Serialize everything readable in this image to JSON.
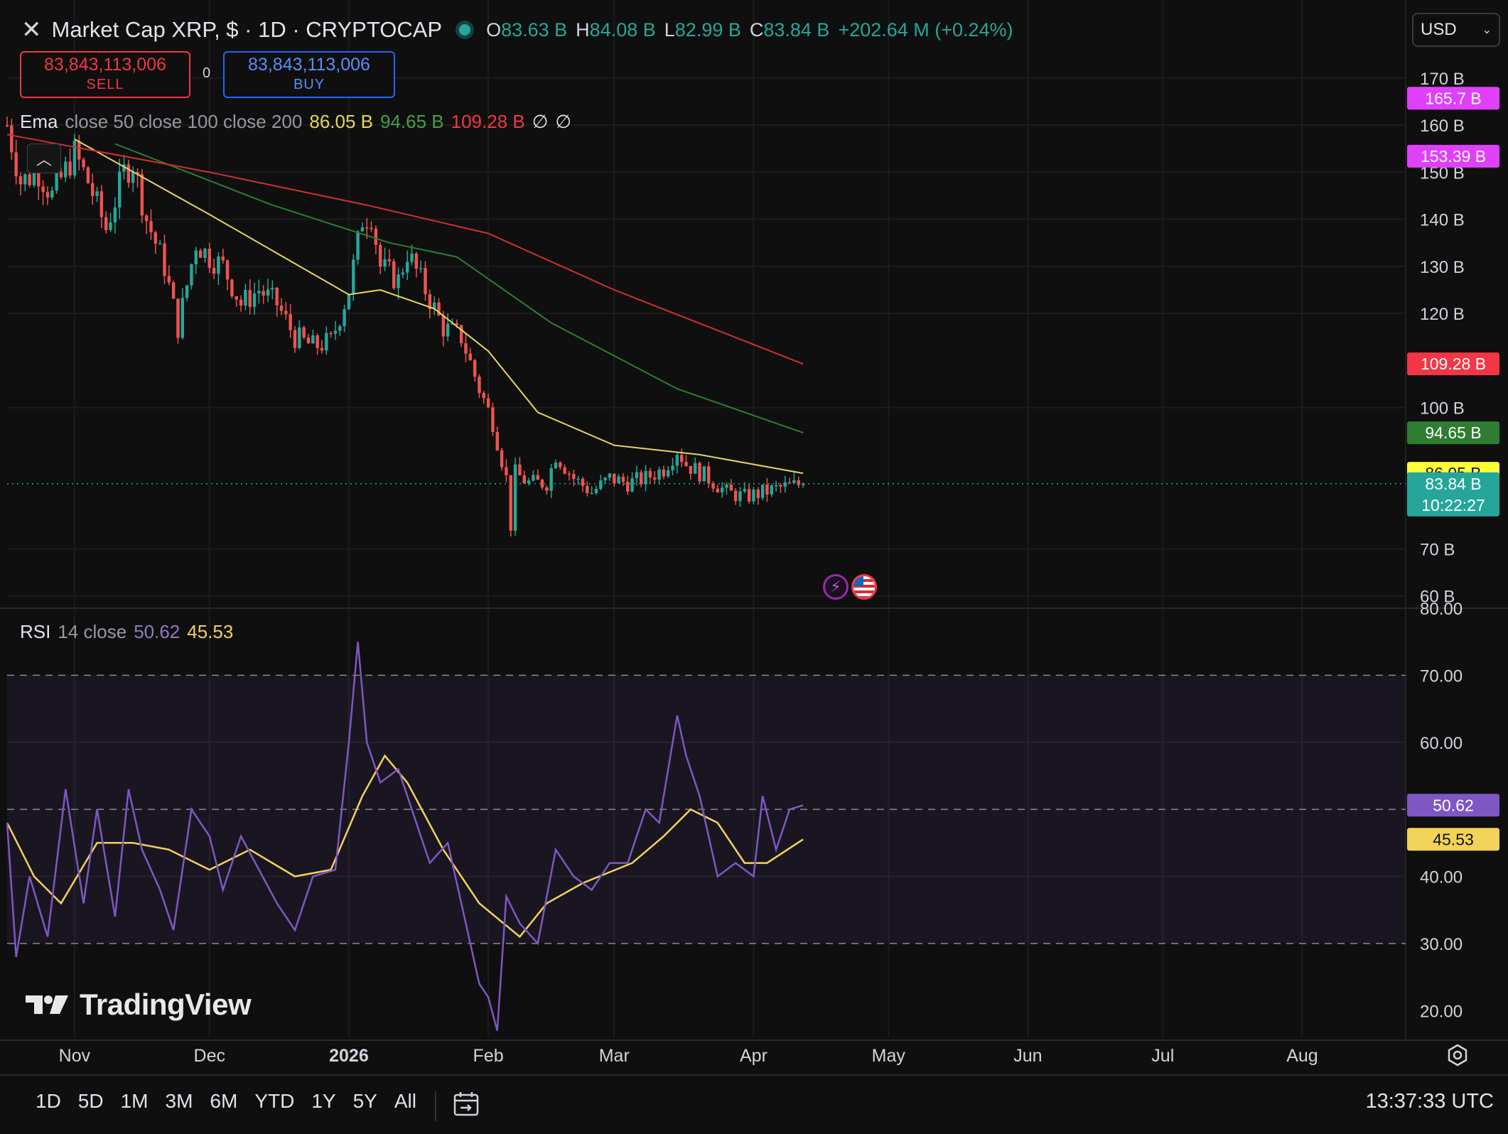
{
  "header": {
    "title": "Market Cap XRP, $ · 1D · CRYPTOCAP",
    "o_label": "O",
    "o": "83.63 B",
    "h_label": "H",
    "h": "84.08 B",
    "l_label": "L",
    "l": "82.99 B",
    "c_label": "C",
    "c": "83.84 B",
    "change": "+202.64 M (+0.24%)"
  },
  "currency": {
    "value": "USD"
  },
  "trade": {
    "sell_price": "83,843,113,006",
    "sell_label": "SELL",
    "spread": "0",
    "buy_price": "83,843,113,006",
    "buy_label": "BUY"
  },
  "ema_legend": {
    "name": "Ema",
    "params": "close 50 close 100 close 200",
    "v50": "86.05 B",
    "v100": "94.65 B",
    "v200": "109.28 B",
    "extra1": "∅",
    "extra2": "∅"
  },
  "rsi_legend": {
    "name": "RSI",
    "params": "14 close",
    "rsi": "50.62",
    "ma": "45.53"
  },
  "colors": {
    "up": "#26a69a",
    "down": "#ef5350",
    "ema50": "#e6d65c",
    "ema100": "#2e7d32",
    "ema200": "#d32f2f",
    "rsi": "#7e57c2",
    "rsi_ma": "#f2d35a"
  },
  "chart_data": [
    {
      "type": "candlestick",
      "series_name": "Market Cap XRP",
      "y_unit": "B",
      "ylim": [
        58,
        176
      ],
      "x_range": [
        "2025-10-17",
        "2026-08-24"
      ],
      "x_tick_labels": [
        "Nov",
        "Dec",
        "2026",
        "Feb",
        "Mar",
        "Apr",
        "May",
        "Jun",
        "Jul",
        "Aug"
      ],
      "x_tick_dates": [
        "2025-11-01",
        "2025-12-01",
        "2026-01-01",
        "2026-02-01",
        "2026-03-01",
        "2026-04-01",
        "2026-05-01",
        "2026-06-01",
        "2026-07-01",
        "2026-08-01"
      ],
      "y_ticks": [
        "170 B",
        "160 B",
        "150 B",
        "140 B",
        "130 B",
        "120 B",
        "100 B",
        "70 B",
        "60 B"
      ],
      "y_tick_values": [
        170,
        160,
        150,
        140,
        130,
        120,
        100,
        70,
        60
      ],
      "close_anchors": [
        [
          "2025-10-17",
          160
        ],
        [
          "2025-10-20",
          148
        ],
        [
          "2025-10-24",
          150
        ],
        [
          "2025-10-27",
          145
        ],
        [
          "2025-11-01",
          154
        ],
        [
          "2025-11-04",
          148
        ],
        [
          "2025-11-08",
          138
        ],
        [
          "2025-11-12",
          150
        ],
        [
          "2025-11-14",
          152
        ],
        [
          "2025-11-17",
          140
        ],
        [
          "2025-11-21",
          130
        ],
        [
          "2025-11-24",
          117
        ],
        [
          "2025-11-28",
          135
        ],
        [
          "2025-12-01",
          132
        ],
        [
          "2025-12-04",
          130
        ],
        [
          "2025-12-08",
          122
        ],
        [
          "2025-12-12",
          125
        ],
        [
          "2025-12-16",
          122
        ],
        [
          "2025-12-20",
          115
        ],
        [
          "2025-12-24",
          113
        ],
        [
          "2025-12-28",
          114
        ],
        [
          "2026-01-01",
          125
        ],
        [
          "2026-01-04",
          140
        ],
        [
          "2026-01-06",
          141
        ],
        [
          "2026-01-08",
          130
        ],
        [
          "2026-01-12",
          127
        ],
        [
          "2026-01-14",
          133
        ],
        [
          "2026-01-18",
          125
        ],
        [
          "2026-01-22",
          117
        ],
        [
          "2026-01-26",
          115
        ],
        [
          "2026-01-30",
          104
        ],
        [
          "2026-02-02",
          97
        ],
        [
          "2026-02-05",
          85
        ],
        [
          "2026-02-06",
          75
        ],
        [
          "2026-02-07",
          86
        ],
        [
          "2026-02-10",
          84
        ],
        [
          "2026-02-14",
          84
        ],
        [
          "2026-02-16",
          90
        ],
        [
          "2026-02-20",
          85
        ],
        [
          "2026-02-24",
          82
        ],
        [
          "2026-02-28",
          85
        ],
        [
          "2026-03-04",
          84
        ],
        [
          "2026-03-08",
          85
        ],
        [
          "2026-03-12",
          87
        ],
        [
          "2026-03-15",
          91
        ],
        [
          "2026-03-17",
          88
        ],
        [
          "2026-03-22",
          85
        ],
        [
          "2026-03-26",
          82
        ],
        [
          "2026-03-30",
          81
        ],
        [
          "2026-04-03",
          82
        ],
        [
          "2026-04-07",
          83
        ],
        [
          "2026-04-12",
          83.84
        ]
      ],
      "ema_series": [
        {
          "name": "Ema 50",
          "last": 86.05,
          "points": [
            [
              "2025-11-01",
              157
            ],
            [
              "2025-12-01",
              141
            ],
            [
              "2026-01-01",
              124
            ],
            [
              "2026-01-08",
              125
            ],
            [
              "2026-01-20",
              121
            ],
            [
              "2026-02-01",
              112
            ],
            [
              "2026-02-12",
              99
            ],
            [
              "2026-03-01",
              92
            ],
            [
              "2026-03-20",
              90
            ],
            [
              "2026-04-12",
              86.05
            ]
          ]
        },
        {
          "name": "Ema 100",
          "last": 94.65,
          "points": [
            [
              "2025-11-10",
              156
            ],
            [
              "2025-12-15",
              143
            ],
            [
              "2026-01-10",
              135
            ],
            [
              "2026-01-25",
              132
            ],
            [
              "2026-02-15",
              118
            ],
            [
              "2026-03-15",
              104
            ],
            [
              "2026-04-12",
              94.65
            ]
          ]
        },
        {
          "name": "Ema 200",
          "last": 109.28,
          "points": [
            [
              "2025-10-17",
              158
            ],
            [
              "2025-12-01",
              150
            ],
            [
              "2026-01-05",
              143
            ],
            [
              "2026-02-01",
              137
            ],
            [
              "2026-03-01",
              125
            ],
            [
              "2026-04-12",
              109.28
            ]
          ]
        }
      ],
      "price_badges": [
        {
          "text": "165.7 B",
          "value": 165.7,
          "color": "#e040fb"
        },
        {
          "text": "153.39 B",
          "value": 153.39,
          "color": "#e040fb"
        },
        {
          "text": "109.28 B",
          "value": 109.28,
          "color": "#f23645"
        },
        {
          "text": "94.65 B",
          "value": 94.65,
          "color": "#2e7d32"
        },
        {
          "text": "86.05 B",
          "value": 86.05,
          "color": "#ffff3b"
        },
        {
          "text": "83.84 B",
          "value": 83.84,
          "color": "#26a69a",
          "sub": "10:22:27"
        }
      ]
    },
    {
      "type": "line",
      "series_name": "RSI",
      "ylim": [
        16,
        80
      ],
      "y_ticks": [
        "80.00",
        "70.00",
        "60.00",
        "40.00",
        "30.00",
        "20.00"
      ],
      "y_tick_values": [
        80,
        70,
        60,
        40,
        30,
        20
      ],
      "band": [
        30,
        70
      ],
      "midline": 50,
      "rsi_anchors": [
        [
          "2025-10-17",
          48
        ],
        [
          "2025-10-19",
          28
        ],
        [
          "2025-10-22",
          40
        ],
        [
          "2025-10-26",
          31
        ],
        [
          "2025-10-30",
          53
        ],
        [
          "2025-11-03",
          36
        ],
        [
          "2025-11-06",
          50
        ],
        [
          "2025-11-10",
          34
        ],
        [
          "2025-11-13",
          53
        ],
        [
          "2025-11-16",
          44
        ],
        [
          "2025-11-20",
          38
        ],
        [
          "2025-11-23",
          32
        ],
        [
          "2025-11-27",
          50
        ],
        [
          "2025-12-01",
          46
        ],
        [
          "2025-12-04",
          38
        ],
        [
          "2025-12-08",
          46
        ],
        [
          "2025-12-12",
          41
        ],
        [
          "2025-12-16",
          36
        ],
        [
          "2025-12-20",
          32
        ],
        [
          "2025-12-24",
          40
        ],
        [
          "2025-12-29",
          41
        ],
        [
          "2026-01-01",
          60
        ],
        [
          "2026-01-03",
          75
        ],
        [
          "2026-01-05",
          60
        ],
        [
          "2026-01-08",
          54
        ],
        [
          "2026-01-12",
          56
        ],
        [
          "2026-01-15",
          50
        ],
        [
          "2026-01-19",
          42
        ],
        [
          "2026-01-23",
          45
        ],
        [
          "2026-01-27",
          33
        ],
        [
          "2026-01-30",
          24
        ],
        [
          "2026-02-01",
          22
        ],
        [
          "2026-02-03",
          17
        ],
        [
          "2026-02-05",
          37
        ],
        [
          "2026-02-08",
          33
        ],
        [
          "2026-02-12",
          30
        ],
        [
          "2026-02-16",
          44
        ],
        [
          "2026-02-20",
          40
        ],
        [
          "2026-02-24",
          38
        ],
        [
          "2026-02-28",
          42
        ],
        [
          "2026-03-04",
          42
        ],
        [
          "2026-03-08",
          50
        ],
        [
          "2026-03-11",
          48
        ],
        [
          "2026-03-15",
          64
        ],
        [
          "2026-03-17",
          58
        ],
        [
          "2026-03-20",
          52
        ],
        [
          "2026-03-24",
          40
        ],
        [
          "2026-03-28",
          42
        ],
        [
          "2026-04-01",
          40
        ],
        [
          "2026-04-03",
          52
        ],
        [
          "2026-04-06",
          44
        ],
        [
          "2026-04-09",
          50
        ],
        [
          "2026-04-12",
          50.62
        ]
      ],
      "ma_anchors": [
        [
          "2025-10-17",
          48
        ],
        [
          "2025-10-23",
          40
        ],
        [
          "2025-10-29",
          36
        ],
        [
          "2025-11-06",
          45
        ],
        [
          "2025-11-14",
          45
        ],
        [
          "2025-11-22",
          44
        ],
        [
          "2025-12-01",
          41
        ],
        [
          "2025-12-10",
          44
        ],
        [
          "2025-12-20",
          40
        ],
        [
          "2025-12-28",
          41
        ],
        [
          "2026-01-04",
          52
        ],
        [
          "2026-01-09",
          58
        ],
        [
          "2026-01-14",
          54
        ],
        [
          "2026-01-22",
          44
        ],
        [
          "2026-01-30",
          36
        ],
        [
          "2026-02-08",
          31
        ],
        [
          "2026-02-14",
          36
        ],
        [
          "2026-02-22",
          39
        ],
        [
          "2026-03-05",
          42
        ],
        [
          "2026-03-12",
          46
        ],
        [
          "2026-03-18",
          50
        ],
        [
          "2026-03-24",
          48
        ],
        [
          "2026-03-30",
          42
        ],
        [
          "2026-04-04",
          42
        ],
        [
          "2026-04-12",
          45.53
        ]
      ],
      "badges": [
        {
          "text": "50.62",
          "value": 50.62,
          "color": "#7e57c2"
        },
        {
          "text": "45.53",
          "value": 45.53,
          "color": "#f2d35a"
        }
      ]
    }
  ],
  "watermark": {
    "text": "TradingView"
  },
  "bottom": {
    "ranges": [
      "1D",
      "5D",
      "1M",
      "3M",
      "6M",
      "YTD",
      "1Y",
      "5Y",
      "All"
    ],
    "clock": "13:37:33 UTC"
  }
}
